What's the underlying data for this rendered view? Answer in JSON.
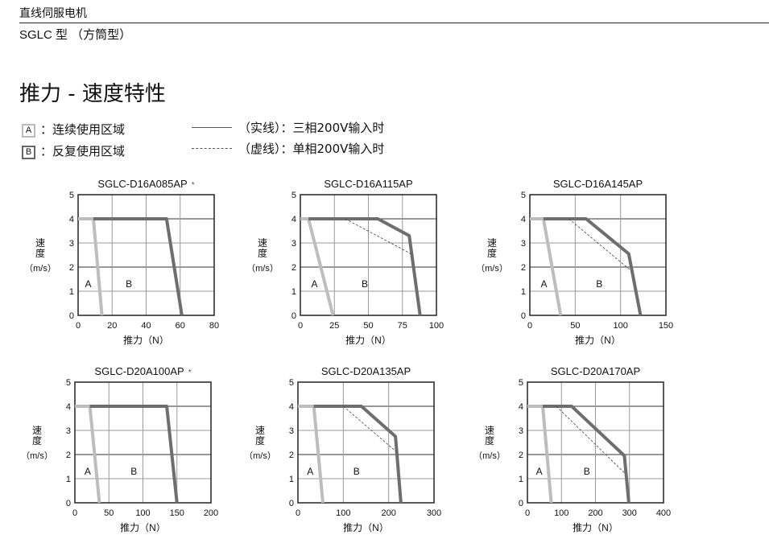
{
  "header": {
    "category": "直线伺服电机",
    "subtitle": "SGLC 型 （方筒型）"
  },
  "title": "推力 - 速度特性",
  "legend": {
    "region_a": {
      "key": "A",
      "label": "：连续使用区域"
    },
    "region_b": {
      "key": "B",
      "label": "：反复使用区域"
    },
    "solid": {
      "label": "（实线）：三相200V输入时"
    },
    "dashed": {
      "label": "（虚线）：单相200V输入时"
    }
  },
  "colors": {
    "region_a": "#bdbdbd",
    "region_b": "#6e6e6e",
    "dashed": "#444444",
    "grid": "#999999"
  },
  "chart_data": [
    {
      "type": "line",
      "title": "SGLC-D16A085AP",
      "note": "*",
      "xlabel": "推力（N）",
      "ylabel": [
        "速度",
        "（m/s）"
      ],
      "xlim": [
        0,
        80
      ],
      "ylim": [
        0,
        5
      ],
      "xticks": [
        0,
        20,
        40,
        60,
        80
      ],
      "yticks": [
        0,
        1,
        2,
        3,
        4,
        5
      ],
      "grid": true,
      "region_labels": {
        "A": [
          4,
          1.3
        ],
        "B": [
          28,
          1.3
        ]
      },
      "series": [
        {
          "name": "A",
          "values": [
            [
              0,
              4
            ],
            [
              9,
              4
            ],
            [
              14,
              0
            ]
          ]
        },
        {
          "name": "B",
          "values": [
            [
              9,
              4
            ],
            [
              52,
              4
            ],
            [
              61,
              0
            ]
          ]
        }
      ]
    },
    {
      "type": "line",
      "title": "SGLC-D16A115AP",
      "note": "",
      "xlabel": "推力（N）",
      "ylabel": [
        "速度",
        "（m/s）"
      ],
      "xlim": [
        0,
        100
      ],
      "ylim": [
        0,
        5
      ],
      "xticks": [
        0,
        25,
        50,
        75,
        100
      ],
      "yticks": [
        0,
        1,
        2,
        3,
        4,
        5
      ],
      "grid": true,
      "region_labels": {
        "A": [
          8,
          1.3
        ],
        "B": [
          45,
          1.3
        ]
      },
      "series": [
        {
          "name": "A",
          "values": [
            [
              0,
              4
            ],
            [
              6,
              4
            ],
            [
              24,
              0
            ]
          ]
        },
        {
          "name": "B",
          "values": [
            [
              6,
              4
            ],
            [
              57,
              4
            ],
            [
              80,
              3.3
            ],
            [
              88,
              0
            ]
          ]
        },
        {
          "name": "B-single-phase",
          "style": "dashed",
          "values": [
            [
              33,
              4
            ],
            [
              83,
              2.5
            ]
          ]
        }
      ]
    },
    {
      "type": "line",
      "title": "SGLC-D16A145AP",
      "note": "",
      "xlabel": "推力（N）",
      "ylabel": [
        "速度",
        "（m/s）"
      ],
      "xlim": [
        0,
        150
      ],
      "ylim": [
        0,
        5
      ],
      "xticks": [
        0,
        50,
        100,
        150
      ],
      "yticks": [
        0,
        1,
        2,
        3,
        4,
        5
      ],
      "grid": true,
      "region_labels": {
        "A": [
          12,
          1.3
        ],
        "B": [
          73,
          1.3
        ]
      },
      "series": [
        {
          "name": "A",
          "values": [
            [
              0,
              4
            ],
            [
              15,
              4
            ],
            [
              34,
              0
            ]
          ]
        },
        {
          "name": "B",
          "values": [
            [
              15,
              4
            ],
            [
              62,
              4
            ],
            [
              109,
              2.55
            ],
            [
              122,
              0
            ]
          ]
        },
        {
          "name": "B-single-phase",
          "style": "dashed",
          "values": [
            [
              43,
              4
            ],
            [
              110,
              1.9
            ]
          ]
        }
      ]
    },
    {
      "type": "line",
      "title": "SGLC-D20A100AP",
      "note": "*",
      "xlabel": "推力（N）",
      "ylabel": [
        "速度",
        "（m/s）"
      ],
      "xlim": [
        0,
        200
      ],
      "ylim": [
        0,
        5
      ],
      "xticks": [
        0,
        50,
        100,
        150,
        200
      ],
      "yticks": [
        0,
        1,
        2,
        3,
        4,
        5
      ],
      "grid": true,
      "region_labels": {
        "A": [
          14,
          1.3
        ],
        "B": [
          82,
          1.3
        ]
      },
      "series": [
        {
          "name": "A",
          "values": [
            [
              0,
              4
            ],
            [
              22,
              4
            ],
            [
              36,
              0
            ]
          ]
        },
        {
          "name": "B",
          "values": [
            [
              22,
              4
            ],
            [
              135,
              4
            ],
            [
              150,
              0
            ]
          ]
        }
      ]
    },
    {
      "type": "line",
      "title": "SGLC-D20A135AP",
      "note": "",
      "xlabel": "推力（N）",
      "ylabel": [
        "速度",
        "（m/s）"
      ],
      "xlim": [
        0,
        300
      ],
      "ylim": [
        0,
        5
      ],
      "xticks": [
        0,
        100,
        200,
        300
      ],
      "yticks": [
        0,
        1,
        2,
        3,
        4,
        5
      ],
      "grid": true,
      "region_labels": {
        "A": [
          20,
          1.3
        ],
        "B": [
          122,
          1.3
        ]
      },
      "series": [
        {
          "name": "A",
          "values": [
            [
              0,
              4
            ],
            [
              35,
              4
            ],
            [
              55,
              0
            ]
          ]
        },
        {
          "name": "B",
          "values": [
            [
              35,
              4
            ],
            [
              140,
              4
            ],
            [
              215,
              2.75
            ],
            [
              227,
              0
            ]
          ]
        },
        {
          "name": "B-single-phase",
          "style": "dashed",
          "values": [
            [
              100,
              4
            ],
            [
              218,
              2.1
            ]
          ]
        }
      ]
    },
    {
      "type": "line",
      "title": "SGLC-D20A170AP",
      "note": "",
      "xlabel": "推力（N）",
      "ylabel": [
        "速度",
        "（m/s）"
      ],
      "xlim": [
        0,
        400
      ],
      "ylim": [
        0,
        5
      ],
      "xticks": [
        0,
        100,
        200,
        300,
        400
      ],
      "yticks": [
        0,
        1,
        2,
        3,
        4,
        5
      ],
      "grid": true,
      "region_labels": {
        "A": [
          25,
          1.3
        ],
        "B": [
          165,
          1.3
        ]
      },
      "series": [
        {
          "name": "A",
          "values": [
            [
              0,
              4
            ],
            [
              45,
              4
            ],
            [
              70,
              0
            ]
          ]
        },
        {
          "name": "B",
          "values": [
            [
              45,
              4
            ],
            [
              130,
              4
            ],
            [
              285,
              1.95
            ],
            [
              298,
              0
            ]
          ]
        },
        {
          "name": "B-single-phase",
          "style": "dashed",
          "values": [
            [
              85,
              4
            ],
            [
              288,
              1.2
            ]
          ]
        }
      ]
    }
  ]
}
